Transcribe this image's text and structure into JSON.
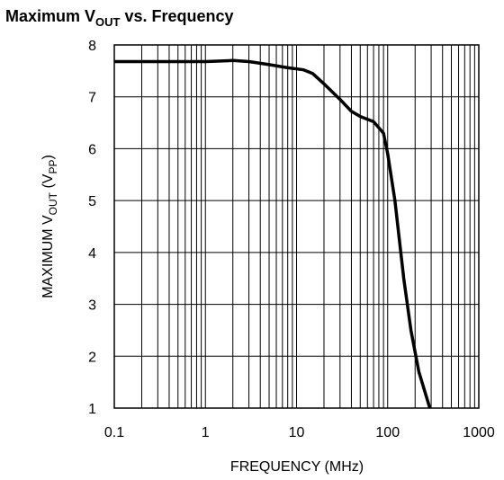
{
  "chart_data": {
    "type": "line",
    "title": [
      "Maximum V",
      "OUT",
      " vs. Frequency"
    ],
    "x_label": "FREQUENCY (MHz)",
    "y_label": [
      "MAXIMUM V",
      "OUT",
      " (V",
      "PP",
      ")"
    ],
    "x_scale": "log",
    "xlim": [
      0.1,
      1000
    ],
    "xticks": [
      0.1,
      1,
      10,
      100,
      1000
    ],
    "ylim": [
      1,
      8
    ],
    "yticks": [
      1,
      2,
      3,
      4,
      5,
      6,
      7,
      8
    ],
    "grid": true,
    "series": [
      {
        "color": "#000000",
        "x": [
          0.1,
          1,
          2,
          3,
          5,
          8,
          12,
          15,
          20,
          30,
          40,
          50,
          70,
          90,
          100,
          120,
          150,
          180,
          220,
          290
        ],
        "values": [
          7.68,
          7.68,
          7.7,
          7.68,
          7.62,
          7.56,
          7.52,
          7.45,
          7.25,
          6.95,
          6.72,
          6.62,
          6.52,
          6.3,
          5.9,
          5.0,
          3.5,
          2.5,
          1.7,
          1.0
        ]
      }
    ]
  }
}
